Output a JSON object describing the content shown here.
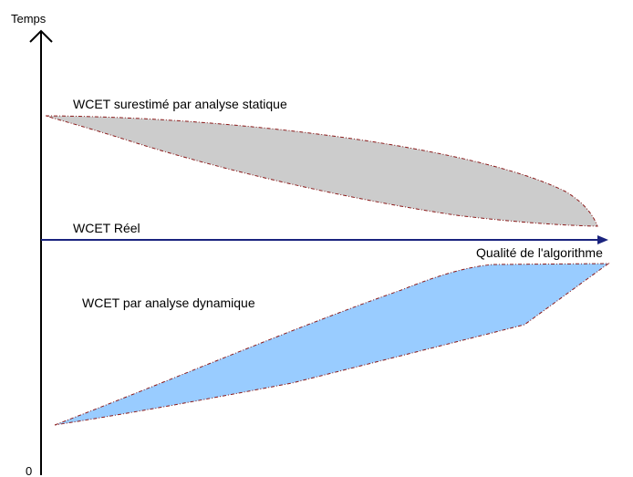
{
  "diagram": {
    "y_axis_label": "Temps",
    "origin_label": "0",
    "x_axis_label": "Qualité de l'algorithme",
    "static_label": "WCET surestimé par analyse statique",
    "real_label": "WCET Réel",
    "dynamic_label": "WCET par analyse dynamique"
  },
  "colors": {
    "axis": "#000000",
    "real_line": "#1a237e",
    "static_fill": "#cccccc",
    "dynamic_fill": "#99ccff",
    "outline": "#8b1a1a"
  }
}
